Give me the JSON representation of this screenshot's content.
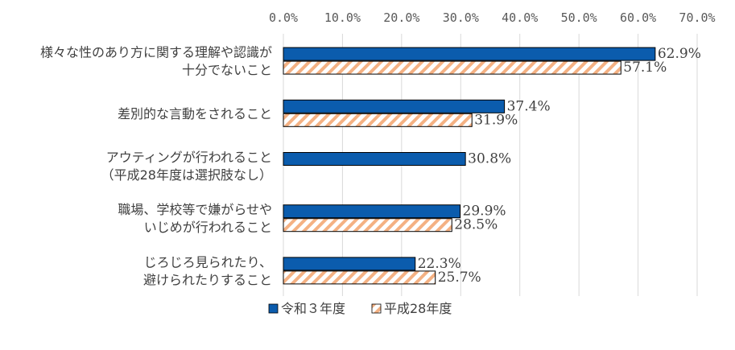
{
  "chart_data": {
    "type": "bar",
    "orientation": "horizontal",
    "categories": [
      [
        "様々な性のあり方に関する理解や認識が",
        "十分でないこと"
      ],
      [
        "差別的な言動をされること"
      ],
      [
        "アウティングが行われること",
        "（平成28年度は選択肢なし）"
      ],
      [
        "職場、学校等で嫌がらせや",
        "いじめが行われること"
      ],
      [
        "じろじろ見られたり、",
        "避けられたりすること"
      ]
    ],
    "series": [
      {
        "name": "令和３年度",
        "values": [
          62.9,
          37.4,
          30.8,
          29.9,
          22.3
        ],
        "labels": [
          "62.9%",
          "37.4%",
          "30.8%",
          "29.9%",
          "22.3%"
        ],
        "color": "#0b5cad",
        "fill": "solid"
      },
      {
        "name": "平成28年度",
        "values": [
          57.1,
          31.9,
          null,
          28.5,
          25.7
        ],
        "labels": [
          "57.1%",
          "31.9%",
          "",
          "28.5%",
          "25.7%"
        ],
        "color": "#f4b183",
        "fill": "hatch"
      }
    ],
    "xlim": [
      0,
      70
    ],
    "xticks": [
      "0.0%",
      "10.0%",
      "20.0%",
      "30.0%",
      "40.0%",
      "50.0%",
      "60.0%",
      "70.0%"
    ],
    "xaxis_position": "top",
    "grid": true,
    "legend": "bottom"
  }
}
